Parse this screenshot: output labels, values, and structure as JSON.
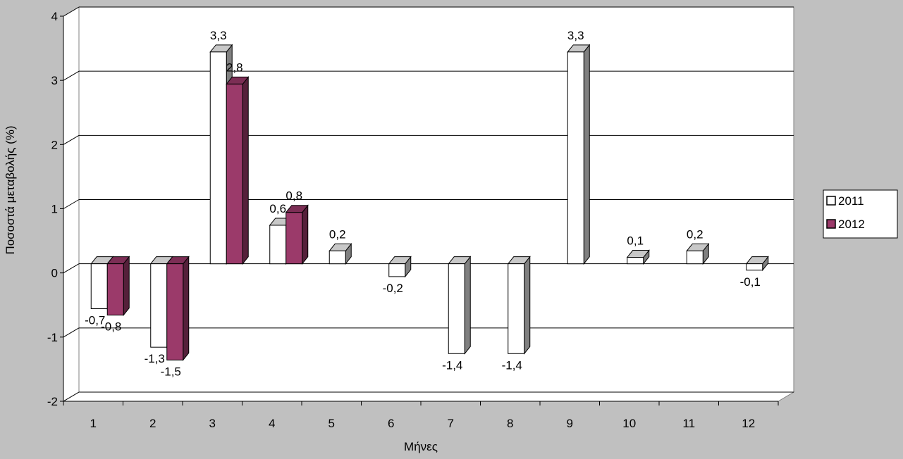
{
  "chart_data": {
    "type": "bar",
    "categories": [
      "1",
      "2",
      "3",
      "4",
      "5",
      "6",
      "7",
      "8",
      "9",
      "10",
      "11",
      "12"
    ],
    "series": [
      {
        "name": "2011",
        "color": "#ffffff",
        "values": [
          -0.7,
          -1.3,
          3.3,
          0.6,
          0.2,
          -0.2,
          -1.4,
          -1.4,
          3.3,
          0.1,
          0.2,
          -0.1
        ]
      },
      {
        "name": "2012",
        "color": "#9b3a6a",
        "values": [
          -0.8,
          -1.5,
          2.8,
          0.8,
          null,
          null,
          null,
          null,
          null,
          null,
          null,
          null
        ]
      }
    ],
    "value_labels": [
      [
        "-0,7",
        "-1,3",
        "3,3",
        "0,6",
        "0,2",
        "-0,2",
        "-1,4",
        "-1,4",
        "3,3",
        "0,1",
        "0,2",
        "-0,1"
      ],
      [
        "-0,8",
        "-1,5",
        "2,8",
        "0,8",
        "",
        "",
        "",
        "",
        "",
        "",
        "",
        ""
      ]
    ],
    "xlabel": "Μήνες",
    "ylabel": "Ποσοστά μεταβολής (%)",
    "ylim": [
      -2,
      4
    ],
    "yticks": [
      -2,
      -1,
      0,
      1,
      2,
      3,
      4
    ],
    "ytick_labels": [
      "-2",
      "-1",
      "0",
      "1",
      "2",
      "3",
      "4"
    ],
    "grid": true,
    "legend_position": "right",
    "three_d": true
  }
}
